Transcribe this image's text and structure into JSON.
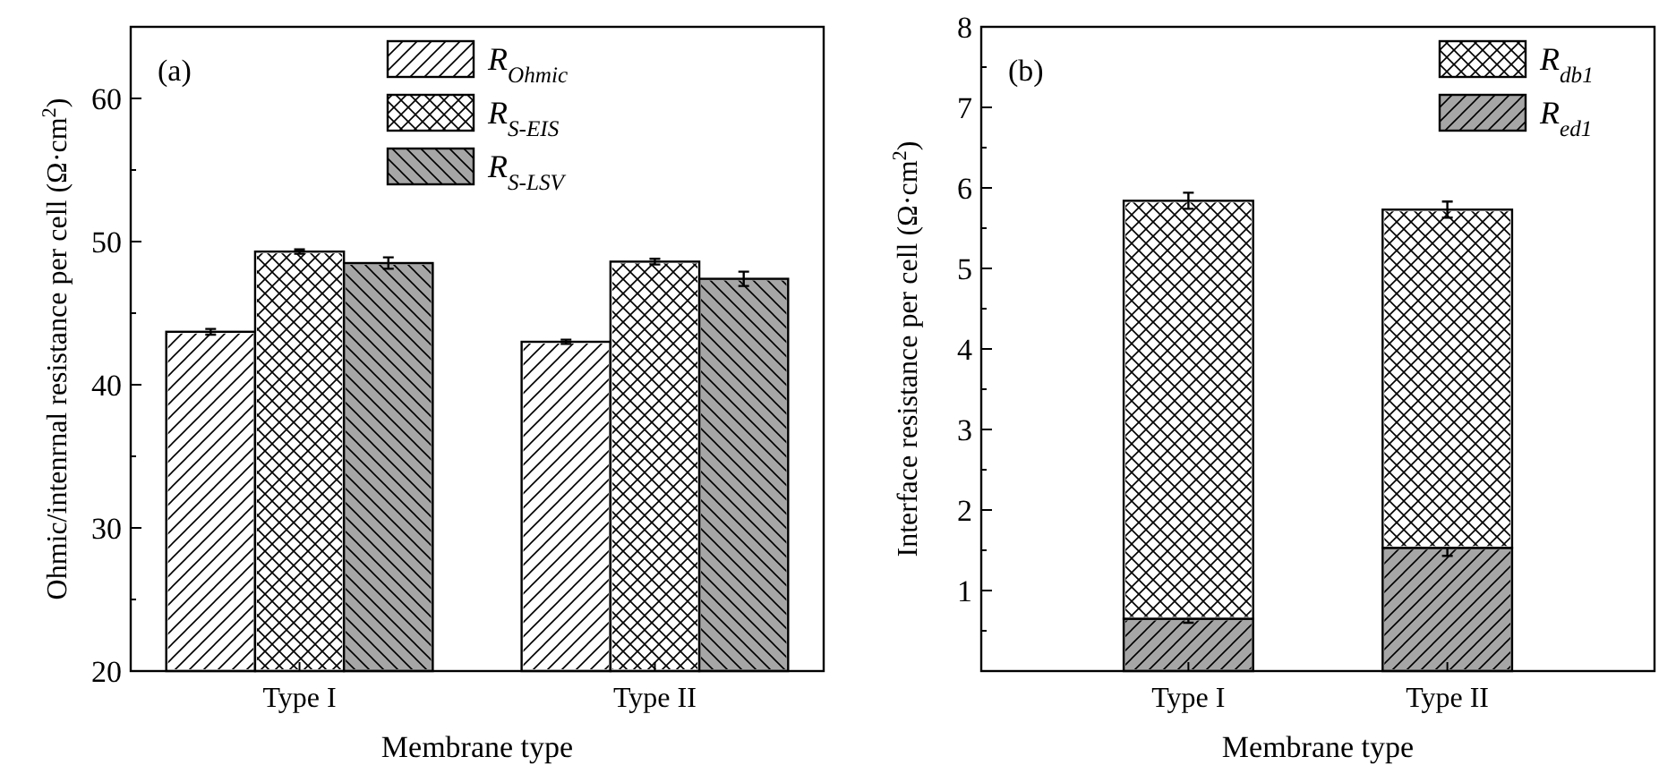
{
  "chart_data": [
    {
      "type": "bar",
      "annotations": [
        "(a)"
      ],
      "xlabel": "Membrane type",
      "ylabel": "Ohmic/intenrnal resistance per cell (Ω·cm$^{2}$)",
      "categories": [
        "Type I",
        "Type II"
      ],
      "series": [
        {
          "name": "R$_{Ohmic}$",
          "color": "#ffffff",
          "values": [
            43.7,
            43.0
          ],
          "errors": [
            0.2,
            0.15
          ]
        },
        {
          "name": "R$_{S-EIS}$",
          "color": "#ffffff",
          "values": [
            49.3,
            48.6
          ],
          "errors": [
            0.15,
            0.2
          ]
        },
        {
          "name": "R$_{S-LSV}$",
          "color": "#a6a6a6",
          "values": [
            48.5,
            47.4
          ],
          "errors": [
            0.4,
            0.5
          ]
        }
      ],
      "ylim": [
        20,
        65
      ],
      "yticks": [
        20,
        {
          "value": 25,
          "label": null
        },
        30,
        {
          "value": 35,
          "label": null
        },
        40,
        {
          "value": 45,
          "label": null
        },
        50,
        {
          "value": 55,
          "label": null
        },
        60,
        {
          "value": 65,
          "label": null
        }
      ],
      "legend": "top",
      "grid": false
    },
    {
      "type": "bar",
      "stacked": true,
      "annotations": [
        "(b)"
      ],
      "xlabel": "Membrane type",
      "ylabel": "Interface resistance per cell (Ω·cm$^{2}$)",
      "categories": [
        "Type I",
        "Type II"
      ],
      "series": [
        {
          "name": "R$_{ed1}$",
          "color": "#a6a6a6",
          "values": [
            0.65,
            1.53
          ],
          "errors": [
            0.05,
            0.1
          ]
        },
        {
          "name": "R$_{db1}$",
          "color": "#ffffff",
          "values": [
            5.19,
            4.2
          ],
          "errors": [
            0.1,
            0.1
          ]
        }
      ],
      "ylim": [
        0,
        8
      ],
      "yticks": [
        {
          "value": 0.5,
          "label": null
        },
        1,
        {
          "value": 1.5,
          "label": null
        },
        2,
        {
          "value": 2.5,
          "label": null
        },
        3,
        {
          "value": 3.5,
          "label": null
        },
        4,
        {
          "value": 4.5,
          "label": null
        },
        5,
        {
          "value": 5.5,
          "label": null
        },
        6,
        {
          "value": 6.5,
          "label": null
        },
        7,
        {
          "value": 7.5,
          "label": null
        },
        8
      ],
      "legend": "top right",
      "grid": false
    }
  ]
}
